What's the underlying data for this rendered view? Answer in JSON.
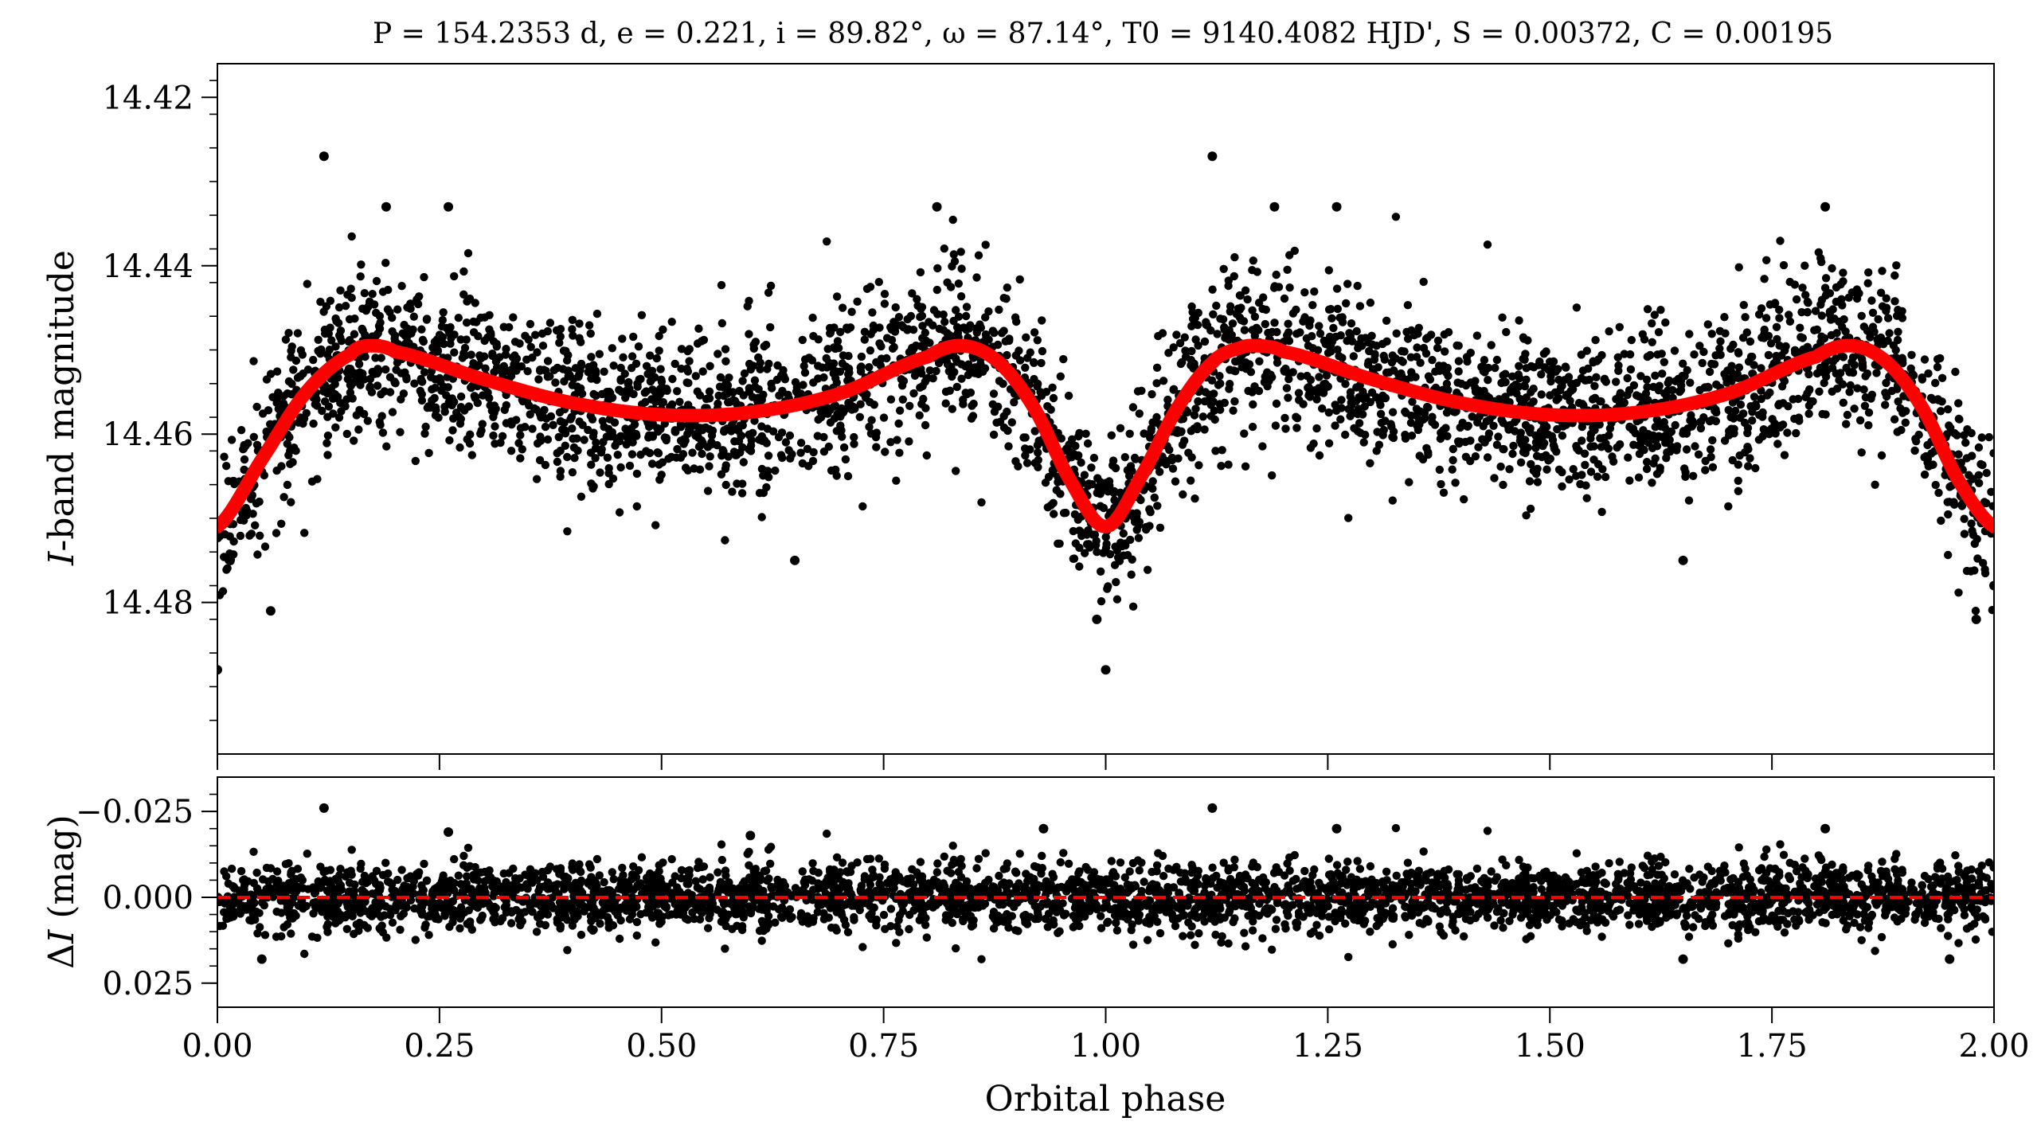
{
  "chart_data": [
    {
      "panel": "top",
      "type": "scatter",
      "title": "P = 154.2353 d, e = 0.221, i = 89.82°, ω = 87.14°, T0 = 9140.4082 HJD', S = 0.00372, C = 0.00195",
      "xlabel": "",
      "ylabel": "I-band magnitude",
      "xlim": [
        0.0,
        2.0
      ],
      "ylim": [
        14.498,
        14.416
      ],
      "y_inverted": true,
      "yticks": [
        "14.42",
        "14.44",
        "14.46",
        "14.48"
      ],
      "ytick_values": [
        14.42,
        14.44,
        14.46,
        14.48
      ],
      "points_color": "#000000",
      "model": {
        "color": "#ff0000",
        "x": [
          0.0,
          0.05,
          0.1,
          0.15,
          0.17,
          0.2,
          0.3,
          0.4,
          0.5,
          0.6,
          0.7,
          0.8,
          0.84,
          0.88,
          0.92,
          0.96,
          1.0,
          1.04,
          1.08,
          1.12,
          1.15,
          1.17,
          1.2,
          1.3,
          1.4,
          1.5,
          1.6,
          1.7,
          1.8,
          1.84,
          1.88,
          1.92,
          1.96,
          2.0
        ],
        "y": [
          14.471,
          14.463,
          14.455,
          14.4505,
          14.4495,
          14.4502,
          14.4535,
          14.4563,
          14.4577,
          14.4574,
          14.4552,
          14.4508,
          14.4495,
          14.4515,
          14.457,
          14.4655,
          14.471,
          14.465,
          14.457,
          14.4515,
          14.4498,
          14.4495,
          14.4502,
          14.4535,
          14.4563,
          14.4577,
          14.4574,
          14.4552,
          14.4508,
          14.4495,
          14.4515,
          14.457,
          14.4655,
          14.471
        ]
      },
      "outliers": {
        "x": [
          0.12,
          1.12,
          0.19,
          0.26,
          0.81,
          1.19,
          1.26,
          1.81,
          0.0,
          1.0,
          2.0,
          0.06,
          0.99,
          1.98,
          0.65,
          1.65
        ],
        "y": [
          14.427,
          14.427,
          14.433,
          14.433,
          14.433,
          14.433,
          14.433,
          14.433,
          14.488,
          14.488,
          14.478,
          14.481,
          14.482,
          14.482,
          14.475,
          14.475
        ]
      }
    },
    {
      "panel": "bottom",
      "type": "scatter",
      "xlabel": "Orbital phase",
      "ylabel": "ΔI (mag)",
      "xlim": [
        0.0,
        2.0
      ],
      "ylim": [
        0.032,
        -0.035
      ],
      "y_inverted": true,
      "yticks": [
        "−0.025",
        "0.000",
        "0.025"
      ],
      "ytick_values": [
        -0.025,
        0.0,
        0.025
      ],
      "xticks": [
        "0.00",
        "0.25",
        "0.50",
        "0.75",
        "1.00",
        "1.25",
        "1.50",
        "1.75",
        "2.00"
      ],
      "xtick_values": [
        0.0,
        0.25,
        0.5,
        0.75,
        1.0,
        1.25,
        1.5,
        1.75,
        2.0
      ],
      "zero_line": {
        "y": 0.0,
        "color": "#ff0000",
        "style": "dashed"
      },
      "points_color": "#000000",
      "outliers": {
        "x": [
          0.12,
          1.12,
          0.26,
          0.93,
          1.26,
          1.81,
          0.05,
          1.65,
          0.6,
          1.95
        ],
        "y": [
          -0.026,
          -0.026,
          -0.019,
          -0.02,
          -0.02,
          -0.02,
          0.018,
          0.018,
          -0.018,
          0.018
        ]
      }
    }
  ]
}
